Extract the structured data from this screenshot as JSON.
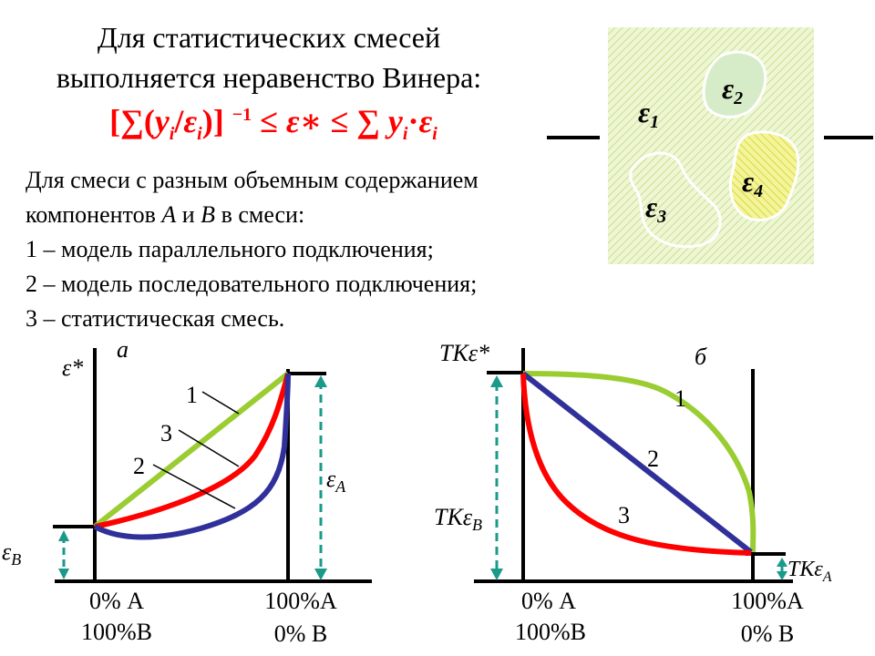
{
  "title": {
    "line1": "Для статистических смесей",
    "line2": "выполняется неравенство Винера:"
  },
  "formula": "[∑(yi/εi)] −1 ≤ ε∗ ≤ ∑ yi·εi",
  "description": {
    "intro1": "Для смеси с разным объемным содержанием",
    "intro2_pre": "компонентов ",
    "intro2_a": "А",
    "intro2_mid": " и ",
    "intro2_b": "В",
    "intro2_post": " в смеси:",
    "item1": "1 – модель параллельного подключения;",
    "item2": "2 – модель последовательного подключения;",
    "item3": "3 – статистическая смесь."
  },
  "mixture": {
    "labels": [
      "ε",
      "ε",
      "ε",
      "ε"
    ],
    "subs": [
      "1",
      "2",
      "3",
      "4"
    ],
    "colors": {
      "matrix": "#e8f3c8",
      "phase2": "#cfe8c0",
      "phase4": "#f0f060",
      "outline": "#ffffff"
    }
  },
  "chart_a": {
    "panel_label": "а",
    "y_label": "ε*",
    "eps_A": "ε",
    "eps_A_sub": "А",
    "eps_B": "ε",
    "eps_B_sub": "В",
    "curve_labels": [
      "1",
      "3",
      "2"
    ],
    "x_left_1": "0% А",
    "x_left_2": "100%В",
    "x_right_1": "100%А",
    "x_right_2": "0% В"
  },
  "chart_b": {
    "panel_label": "б",
    "y_label": "ТКε*",
    "tk_B": "ТКε",
    "tk_B_sub": "В",
    "tk_A": "ТКε",
    "tk_A_sub": "А",
    "curve_labels": [
      "1",
      "2",
      "3"
    ],
    "x_left_1": "0% А",
    "x_left_2": "100%В",
    "x_right_1": "100%А",
    "x_right_2": "0% В"
  },
  "colors": {
    "model1": "#9acd32",
    "model2": "#30309a",
    "model3": "#ff0000",
    "dashed": "#1a9a8a",
    "formula": "#ff0000"
  }
}
